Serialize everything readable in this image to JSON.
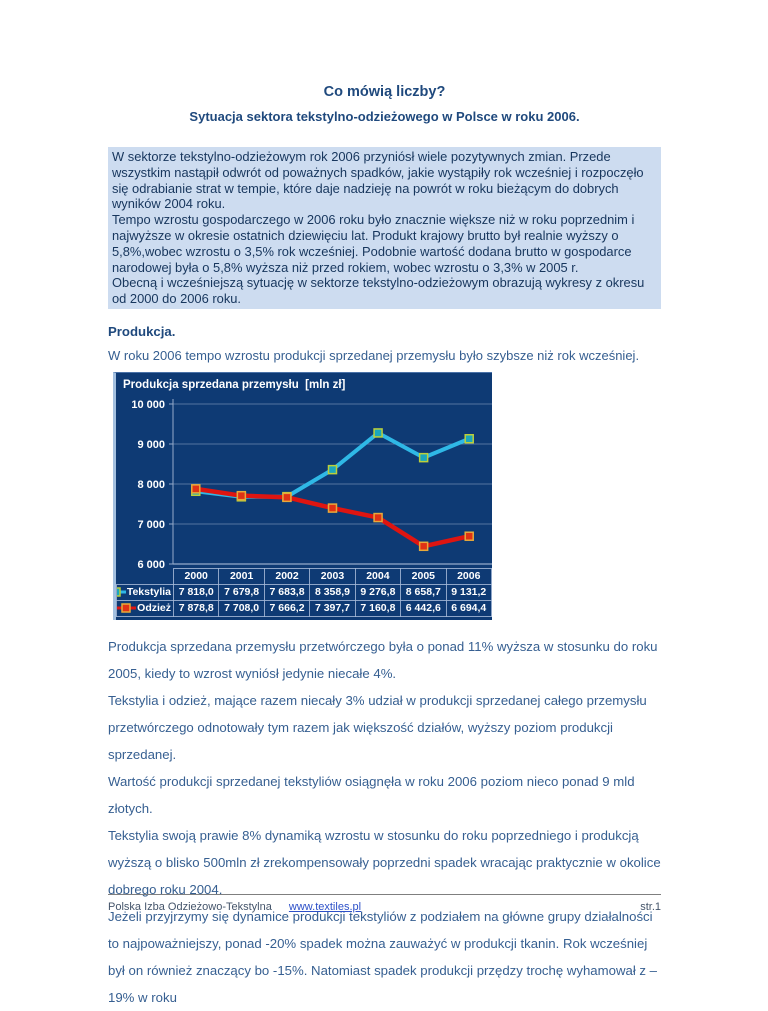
{
  "colors": {
    "accent": "#1F497D",
    "body_text": "#365F91",
    "intro_highlight_bg": "#CDDCF0",
    "intro_text": "#17365D",
    "footer_text": "#44546A",
    "link": "#2D50C8",
    "chart_background": "#0E3A74"
  },
  "document": {
    "title": "Co mówią liczby?",
    "subtitle": "Sytuacja sektora tekstylno-odzieżowego w Polsce w roku 2006.",
    "intro_paragraphs": [
      "W sektorze tekstylno-odzieżowym rok 2006 przyniósł wiele pozytywnych zmian. Przede wszystkim nastąpił odwrót od poważnych spadków, jakie wystąpiły rok wcześniej i rozpoczęło się odrabianie strat w tempie, które daje nadzieję na powrót w roku bieżącym do dobrych wyników 2004 roku.",
      "Tempo wzrostu gospodarczego w 2006 roku było znacznie większe niż w roku poprzednim i najwyższe w okresie ostatnich dziewięciu lat. Produkt krajowy brutto był realnie wyższy o 5,8%,wobec wzrostu o 3,5% rok wcześniej. Podobnie wartość dodana brutto w gospodarce narodowej była o 5,8% wyższa niż przed rokiem, wobec wzrostu o 3,3% w 2005 r.",
      "Obecną i wcześniejszą sytuację w sektorze tekstylno-odzieżowym obrazują wykresy z okresu od 2000 do 2006 roku."
    ],
    "section": {
      "heading": "Produkcja.",
      "lead": "W roku 2006 tempo wzrostu produkcji sprzedanej przemysłu było szybsze niż rok wcześniej."
    },
    "body_paragraphs": [
      "Produkcja sprzedana przemysłu przetwórczego była o ponad 11% wyższa w stosunku do roku 2005, kiedy to wzrost wyniósł jedynie niecałe 4%.",
      "Tekstylia i odzież, mające razem niecały 3% udział w produkcji sprzedanej całego przemysłu przetwórczego odnotowały tym razem jak większość działów, wyższy poziom produkcji sprzedanej.",
      "Wartość produkcji sprzedanej tekstyliów osiągnęła w roku 2006 poziom nieco ponad 9 mld złotych.",
      "Tekstylia swoją prawie 8% dynamiką wzrostu w stosunku do roku poprzedniego i produkcją wyższą o blisko 500mln zł zrekompensowały poprzedni spadek wracając praktycznie w okolice dobrego roku 2004.",
      "Jeżeli przyjrzymy się dynamice produkcji tekstyliów z podziałem na główne grupy działalności to najpoważniejszy, ponad -20% spadek można zauważyć w produkcji tkanin. Rok wcześniej był on również znaczący bo -15%. Natomiast spadek produkcji przędzy  trochę wyhamował z –19% w roku"
    ],
    "footer": {
      "organization": "Polska Izba Odzieżowo-Tekstylna",
      "website": "www.textiles.pl",
      "page_number": "str.1"
    }
  },
  "chart_data": {
    "type": "line",
    "title": "Produkcja sprzedana przemysłu  [mln zł]",
    "categories": [
      "2000",
      "2001",
      "2002",
      "2003",
      "2004",
      "2005",
      "2006"
    ],
    "series": [
      {
        "name": "Tekstylia",
        "values": [
          7818.0,
          7679.8,
          7683.8,
          8358.9,
          9276.8,
          8658.7,
          9131.2
        ],
        "line_color": "#2FB8E6",
        "marker_fill": "#1BA7BC",
        "marker_stroke": "#BCCF3A",
        "line_width": 4
      },
      {
        "name": "Odzież",
        "values": [
          7878.8,
          7708.0,
          7666.2,
          7397.7,
          7160.8,
          6442.6,
          6694.4
        ],
        "line_color": "#DE1511",
        "marker_fill": "#E03214",
        "marker_stroke": "#E8A93A",
        "line_width": 4.5
      }
    ],
    "xlabel": "",
    "ylabel": "",
    "ylim": [
      6000,
      10000
    ],
    "ytick_step": 1000,
    "grid": true,
    "legend_position": "table-left",
    "grid_color": "#95AACA",
    "text_color": "#FFFFFF",
    "background": "#0E3A74"
  }
}
